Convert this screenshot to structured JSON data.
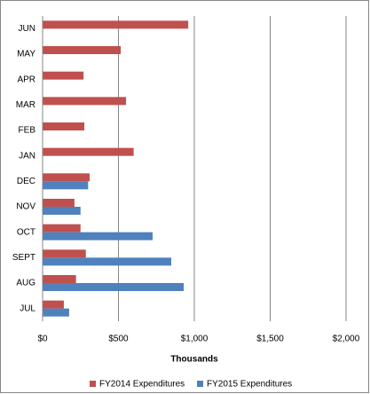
{
  "chart_data": {
    "type": "bar",
    "orientation": "horizontal",
    "categories": [
      "JUN",
      "MAY",
      "APR",
      "MAR",
      "FEB",
      "JAN",
      "DEC",
      "NOV",
      "OCT",
      "SEPT",
      "AUG",
      "JUL"
    ],
    "series": [
      {
        "name": "FY2014 Expenditures",
        "color": "#c0504d",
        "values": [
          960,
          515,
          270,
          550,
          275,
          600,
          310,
          210,
          250,
          285,
          220,
          140
        ]
      },
      {
        "name": "FY2015 Expenditures",
        "color": "#4f81bd",
        "values": [
          null,
          null,
          null,
          null,
          null,
          null,
          300,
          250,
          725,
          848,
          930,
          175
        ]
      }
    ],
    "xlabel": "Thousands",
    "xlim": [
      0,
      2000
    ],
    "xticks": [
      {
        "value": 0,
        "label": "$0"
      },
      {
        "value": 500,
        "label": "$500"
      },
      {
        "value": 1000,
        "label": "$1,000"
      },
      {
        "value": 1500,
        "label": "$1,500"
      },
      {
        "value": 2000,
        "label": "$2,000"
      }
    ],
    "grid": true,
    "legend": "bottom"
  }
}
